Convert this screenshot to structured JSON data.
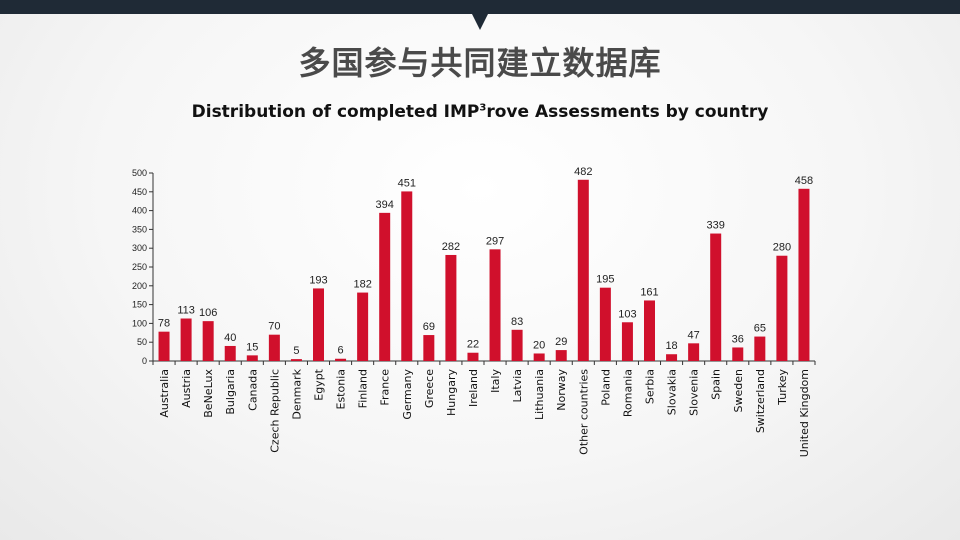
{
  "slide": {
    "title": "多国参与共同建立数据库"
  },
  "chart_data": {
    "type": "bar",
    "title_main": "Distribution of completed IMP",
    "title_sup": "3",
    "title_rest": "rove Assessments by country",
    "categories": [
      "Australia",
      "Austria",
      "BeNeLux",
      "Bulgaria",
      "Canada",
      "Czech Republic",
      "Denmark",
      "Egypt",
      "Estonia",
      "Finland",
      "France",
      "Germany",
      "Greece",
      "Hungary",
      "Ireland",
      "Italy",
      "Latvia",
      "Lithuania",
      "Norway",
      "Other countries",
      "Poland",
      "Romania",
      "Serbia",
      "Slovakia",
      "Slovenia",
      "Spain",
      "Sweden",
      "Switzerland",
      "Turkey",
      "United Kingdom"
    ],
    "values": [
      78,
      113,
      106,
      40,
      15,
      70,
      5,
      193,
      6,
      182,
      394,
      451,
      69,
      282,
      22,
      297,
      83,
      20,
      29,
      482,
      195,
      103,
      161,
      18,
      47,
      339,
      36,
      65,
      280,
      458
    ],
    "ylim": [
      0,
      500
    ],
    "yticks": [
      0,
      50,
      100,
      150,
      200,
      250,
      300,
      350,
      400,
      450,
      500
    ],
    "bar_color": "#d0102c",
    "grid": false,
    "legend": "none"
  }
}
